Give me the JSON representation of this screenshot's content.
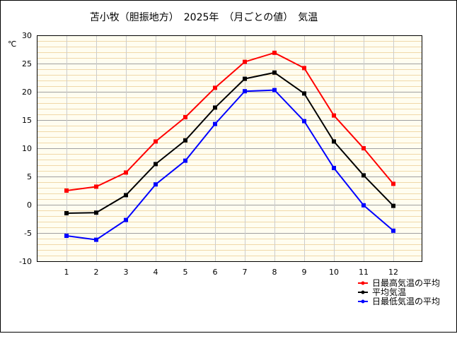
{
  "chart_data": {
    "type": "line",
    "title": "苫小牧（胆振地方）　2025年　（月ごとの値）　気温",
    "ylabel": "℃",
    "xlabel": "",
    "categories": [
      "1",
      "2",
      "3",
      "4",
      "5",
      "6",
      "7",
      "8",
      "9",
      "10",
      "11",
      "12"
    ],
    "ylim": [
      -10,
      30
    ],
    "yticks": [
      -10,
      -5,
      0,
      5,
      10,
      15,
      20,
      25,
      30
    ],
    "grid": true,
    "legend_position": "bottom-right",
    "series": [
      {
        "name": "日最高気温の平均",
        "color": "#ff0000",
        "values": [
          2.5,
          3.2,
          5.7,
          11.2,
          15.5,
          20.7,
          25.3,
          26.9,
          24.2,
          15.8,
          10.0,
          3.7
        ]
      },
      {
        "name": "平均気温",
        "color": "#000000",
        "values": [
          -1.5,
          -1.4,
          1.7,
          7.2,
          11.4,
          17.2,
          22.3,
          23.4,
          19.7,
          11.2,
          5.2,
          -0.2
        ]
      },
      {
        "name": "日最低気温の平均",
        "color": "#0000ff",
        "values": [
          -5.5,
          -6.2,
          -2.7,
          3.6,
          7.8,
          14.3,
          20.1,
          20.3,
          14.8,
          6.5,
          -0.1,
          -4.6
        ]
      }
    ]
  }
}
